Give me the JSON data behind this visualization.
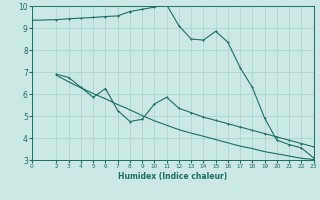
{
  "xlabel": "Humidex (Indice chaleur)",
  "bg_color": "#cce8e5",
  "grid_color": "#aed4d0",
  "line_color": "#1a6e65",
  "xlim": [
    0,
    23
  ],
  "ylim": [
    3,
    10
  ],
  "xticks": [
    0,
    2,
    3,
    4,
    5,
    6,
    7,
    8,
    9,
    10,
    11,
    12,
    13,
    14,
    15,
    16,
    17,
    18,
    19,
    20,
    21,
    22,
    23
  ],
  "yticks": [
    3,
    4,
    5,
    6,
    7,
    8,
    9,
    10
  ],
  "series1_x": [
    0,
    2,
    3,
    4,
    5,
    6,
    7,
    8,
    9,
    10,
    11,
    12,
    13,
    14,
    15,
    16,
    17,
    18,
    19,
    20,
    21,
    22,
    23
  ],
  "series1_y": [
    9.35,
    9.38,
    9.42,
    9.45,
    9.48,
    9.52,
    9.55,
    9.75,
    9.85,
    9.95,
    10.05,
    9.1,
    8.5,
    8.45,
    8.85,
    8.35,
    7.2,
    6.3,
    4.9,
    3.9,
    3.7,
    3.55,
    3.1
  ],
  "series2_x": [
    2,
    3,
    4,
    5,
    6,
    7,
    8,
    9,
    10,
    11,
    12,
    13,
    14,
    15,
    16,
    17,
    18,
    19,
    20,
    21,
    22,
    23
  ],
  "series2_y": [
    6.9,
    6.75,
    6.3,
    5.85,
    6.25,
    5.25,
    4.75,
    4.85,
    5.55,
    5.85,
    5.35,
    5.15,
    4.95,
    4.8,
    4.65,
    4.5,
    4.35,
    4.2,
    4.05,
    3.9,
    3.75,
    3.6
  ],
  "series3_x": [
    2,
    3,
    4,
    5,
    6,
    7,
    8,
    9,
    10,
    11,
    12,
    13,
    14,
    15,
    16,
    17,
    18,
    19,
    20,
    21,
    22,
    23
  ],
  "series3_y": [
    6.85,
    6.55,
    6.28,
    6.02,
    5.78,
    5.52,
    5.28,
    5.02,
    4.78,
    4.58,
    4.38,
    4.22,
    4.08,
    3.93,
    3.78,
    3.63,
    3.52,
    3.38,
    3.28,
    3.18,
    3.08,
    3.02
  ]
}
